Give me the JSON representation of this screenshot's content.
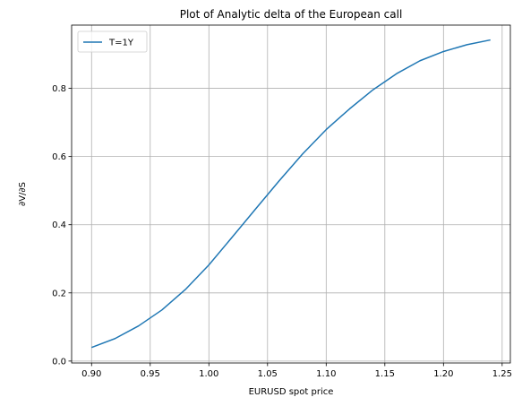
{
  "chart_data": {
    "type": "line",
    "title": "Plot of Analytic delta of the European call",
    "xlabel": "EURUSD spot price",
    "ylabel": "∂V/∂S",
    "xlim": [
      0.883,
      1.257
    ],
    "ylim": [
      -0.0056,
      0.9855
    ],
    "xticks": [
      0.9,
      0.95,
      1.0,
      1.05,
      1.1,
      1.15,
      1.2,
      1.25
    ],
    "xtick_labels": [
      "0.90",
      "0.95",
      "1.00",
      "1.05",
      "1.10",
      "1.15",
      "1.20",
      "1.25"
    ],
    "yticks": [
      0.0,
      0.2,
      0.4,
      0.6,
      0.8
    ],
    "ytick_labels": [
      "0.0",
      "0.2",
      "0.4",
      "0.6",
      "0.8"
    ],
    "grid": true,
    "legend_position": "top-left",
    "series": [
      {
        "name": "T=1Y",
        "color": "#1f77b4",
        "x": [
          0.9,
          0.92,
          0.94,
          0.96,
          0.98,
          1.0,
          1.02,
          1.04,
          1.06,
          1.08,
          1.1,
          1.12,
          1.14,
          1.16,
          1.18,
          1.2,
          1.22,
          1.24
        ],
        "y": [
          0.04,
          0.066,
          0.103,
          0.15,
          0.21,
          0.282,
          0.364,
          0.447,
          0.529,
          0.608,
          0.679,
          0.74,
          0.796,
          0.843,
          0.881,
          0.908,
          0.928,
          0.942
        ]
      }
    ]
  }
}
